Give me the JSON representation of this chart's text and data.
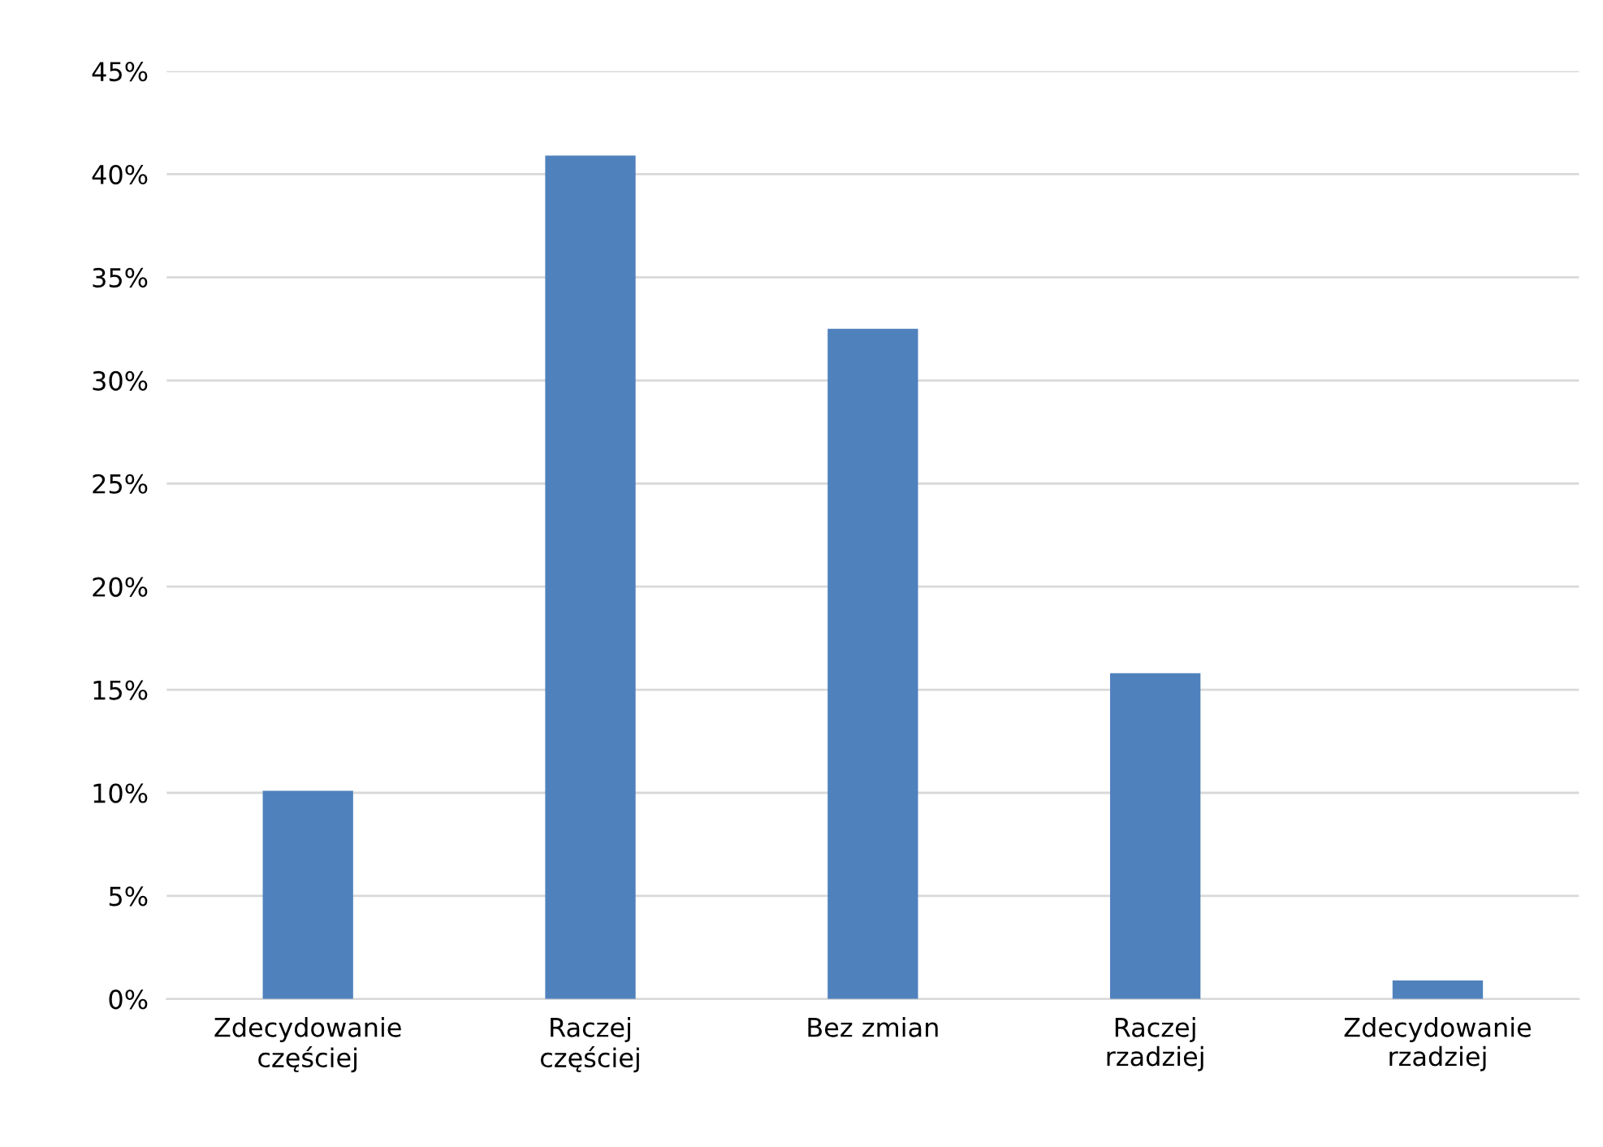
{
  "chart_data": {
    "type": "bar",
    "categories": [
      "Zdecydowanie\nczęściej",
      "Raczej\nczęściej",
      "Bez zmian",
      "Raczej\nrzadziej",
      "Zdecydowanie\nrzadziej"
    ],
    "values": [
      10.1,
      40.9,
      32.5,
      15.8,
      0.9
    ],
    "color": "#4f81bd",
    "ylim": [
      0,
      45
    ],
    "yticks": [
      {
        "value": 0,
        "label": "0%"
      },
      {
        "value": 5,
        "label": "5%"
      },
      {
        "value": 10,
        "label": "10%"
      },
      {
        "value": 15,
        "label": "15%"
      },
      {
        "value": 20,
        "label": "20%"
      },
      {
        "value": 25,
        "label": "25%"
      },
      {
        "value": 30,
        "label": "30%"
      },
      {
        "value": 35,
        "label": "35%"
      },
      {
        "value": 40,
        "label": "40%"
      },
      {
        "value": 45,
        "label": "45%"
      }
    ],
    "grid": "y",
    "legend": false
  }
}
